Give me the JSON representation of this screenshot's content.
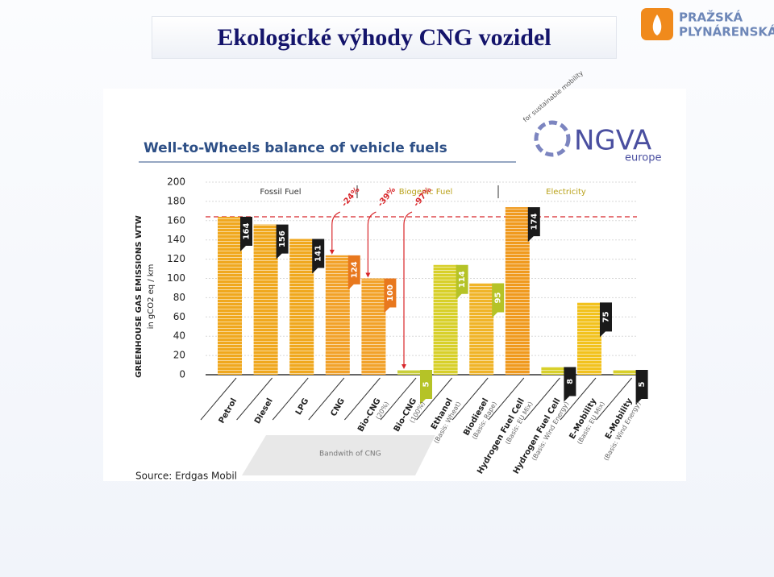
{
  "slide_title": "Ekologické výhody CNG vozidel",
  "logo": {
    "line1": "PRAŽSKÁ",
    "line2": "PLYNÁRENSKÁ"
  },
  "chart_data": {
    "type": "bar",
    "title": "Well-to-Wheels balance of vehicle fuels",
    "brand": {
      "tagline": "for sustainable mobility",
      "name": "NGVA",
      "region": "europe"
    },
    "y_label": "GREENHOUSE GAS EMISSIONS WTW",
    "y_unit": "in gCO2 eq / km",
    "categories": [
      "Petrol",
      "Diesel",
      "LPG",
      "CNG",
      "Bio-CNG",
      "Bio-CNG",
      "Ethanol",
      "Biodiesel",
      "Hydrogen Fuel Cell",
      "Hydrogen Fuel Cell",
      "E-Mobility",
      "E-Mobility"
    ],
    "category_notes": [
      null,
      null,
      null,
      null,
      "(20%)",
      "(100%)",
      "(Basis: Wheat)",
      "(Basis: Rape)",
      "(Basis: EU Mix)",
      "(Basis: Wind Energy)",
      "(Basis: EU Mix)",
      "(Basis: Wind Energy)"
    ],
    "values": [
      164,
      156,
      141,
      124,
      100,
      5,
      114,
      95,
      174,
      8,
      75,
      5
    ],
    "colors": [
      "#f0a81e",
      "#f0a81e",
      "#f0a81e",
      "#f2a22a",
      "#f2a22a",
      "#c9cf3a",
      "#d8d02a",
      "#f0b428",
      "#f09a1e",
      "#d8d02a",
      "#f2c21e",
      "#d8d02a"
    ],
    "label_colors": [
      "#1a1a1a",
      "#1a1a1a",
      "#1a1a1a",
      "#e8781e",
      "#e8781e",
      "#b5c327",
      "#b5c327",
      "#b5c327",
      "#1a1a1a",
      "#1a1a1a",
      "#1a1a1a",
      "#1a1a1a"
    ],
    "groups": [
      "Fossil Fuel",
      "Biogenic Fuel",
      "Electricity"
    ],
    "annotations": [
      "-24%",
      "-39%",
      "-97%"
    ],
    "reference_line": 164,
    "band_label": "Bandwith of CNG",
    "source": "Source: Erdgas Mobil",
    "ylim": [
      0,
      200
    ],
    "yticks": [
      0,
      20,
      40,
      60,
      80,
      100,
      120,
      140,
      160,
      180,
      200
    ],
    "grid": true
  }
}
